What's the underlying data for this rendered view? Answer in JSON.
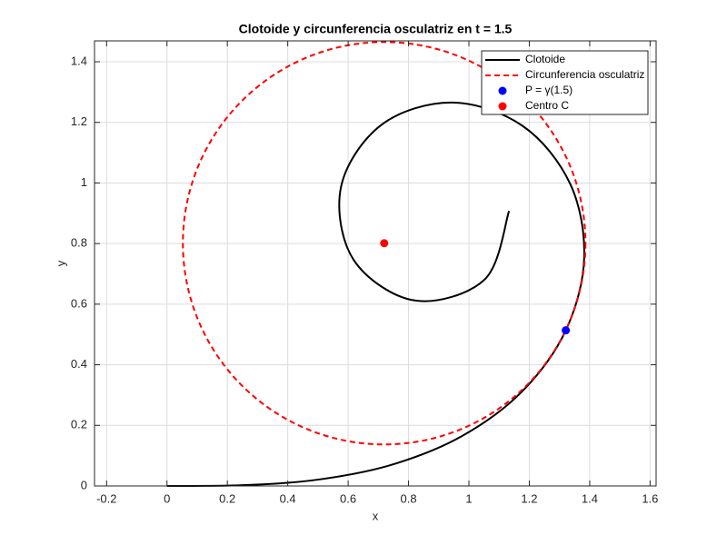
{
  "chart_data": {
    "type": "line",
    "title": "Clotoide y circunferencia osculatriz en t = 1.5",
    "x_label": "x",
    "y_label": "y",
    "xlim": [
      -0.24,
      1.62
    ],
    "ylim": [
      0,
      1.469
    ],
    "xticks": [
      -0.2,
      0,
      0.2,
      0.4,
      0.6,
      0.8,
      1,
      1.2,
      1.4,
      1.6
    ],
    "yticks": [
      0,
      0.2,
      0.4,
      0.6,
      0.8,
      1,
      1.2,
      1.4
    ],
    "grid": true,
    "legend": "northeast",
    "series": [
      {
        "name": "Clotoide",
        "color": "#000000",
        "kind": "line",
        "x": [
          0,
          0.25,
          0.4992,
          0.7441,
          0.9753,
          1.1758,
          1.3209,
          1.3818,
          1.3351,
          1.1779,
          0.9439,
          0.7098,
          0.5763,
          0.6182,
          0.8205,
          1.052,
          1.133
        ],
        "y": [
          0,
          0.0026,
          0.0208,
          0.0699,
          0.1637,
          0.3116,
          0.5137,
          0.7544,
          0.9977,
          1.1883,
          1.2655,
          1.1915,
          0.9864,
          0.7463,
          0.6122,
          0.6812,
          0.9076
        ]
      },
      {
        "name": "Circunferencia osculatriz",
        "color": "#ff0000",
        "kind": "circle",
        "x": [
          0.7194
        ],
        "y": [
          0.8012
        ],
        "radius": 0.6667
      },
      {
        "name": "P = γ(1.5)",
        "color": "#0000ff",
        "kind": "point",
        "x": [
          1.3209
        ],
        "y": [
          0.5137
        ]
      },
      {
        "name": "Centro C",
        "color": "#ff0000",
        "kind": "point",
        "x": [
          0.7194
        ],
        "y": [
          0.8012
        ]
      }
    ]
  }
}
